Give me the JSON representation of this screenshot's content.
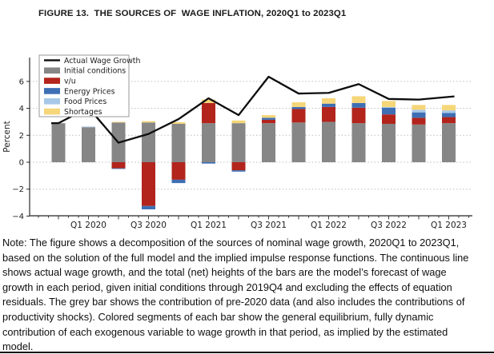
{
  "figure": {
    "title": "FIGURE 13.  THE SOURCES OF  WAGE INFLATION, 2020Q1 to 2023Q1"
  },
  "note_lines": [
    "Note: The figure shows a decomposition of the sources of nominal wage growth, 2020Q1 to 2023Q1,",
    "based on the solution of the full model and the implied impulse response functions. The continuous line",
    "shows actual wage growth, and the total (net) heights of the bars are the model’s forecast of wage",
    "growth in each period, given initial conditions through 2019Q4 and excluding the effects of equation",
    "residuals. The grey bar shows the contribution of pre-2020 data (and also includes the contributions of",
    "productivity shocks). Colored segments of each bar show the general equilibrium, fully dynamic",
    "contribution of each exogenous variable to wage growth in that period, as implied by the estimated",
    "model."
  ],
  "chart_data": {
    "type": "bar",
    "subtype": "stacked-bars-with-line",
    "title": "",
    "xlabel": "",
    "ylabel": "Percent",
    "ylim": [
      -4,
      7.75
    ],
    "yticks": [
      -4,
      -2,
      0,
      2,
      4,
      6
    ],
    "grid": "horizontal-dotted",
    "legend_position": "upper-left",
    "categories": [
      "2019Q4",
      "2020Q1",
      "2020Q2",
      "2020Q3",
      "2020Q4",
      "2021Q1",
      "2021Q2",
      "2021Q3",
      "2021Q4",
      "2022Q1",
      "2022Q2",
      "2022Q3",
      "2022Q4",
      "2023Q1"
    ],
    "xtick_label_indices": [
      1,
      3,
      5,
      7,
      9,
      11,
      13
    ],
    "xtick_labels": [
      "Q1 2020",
      "Q3 2020",
      "Q1 2021",
      "Q3 2021",
      "Q1 2022",
      "Q3 2022",
      "Q1 2023"
    ],
    "series": [
      {
        "name": "Initial conditions",
        "color": "#868686",
        "values": [
          2.9,
          2.6,
          2.95,
          2.95,
          2.85,
          2.9,
          2.9,
          2.9,
          2.95,
          3.0,
          2.9,
          2.85,
          2.8,
          2.9
        ]
      },
      {
        "name": "v/u",
        "color": "#b2241c",
        "values": [
          0,
          0,
          -0.45,
          -3.25,
          -1.3,
          1.5,
          -0.6,
          0.25,
          1.0,
          1.1,
          1.15,
          0.7,
          0.5,
          0.45
        ]
      },
      {
        "name": "Energy Prices",
        "color": "#3e6fb4",
        "values": [
          0,
          0,
          -0.05,
          -0.25,
          -0.25,
          -0.1,
          -0.1,
          0.15,
          0.15,
          0.25,
          0.35,
          0.5,
          0.4,
          0.3
        ]
      },
      {
        "name": "Food Prices",
        "color": "#a8c8e8",
        "values": [
          0,
          0.05,
          0,
          0,
          0,
          0,
          0,
          0,
          0,
          0,
          0,
          0.05,
          0.2,
          0.2
        ]
      },
      {
        "name": "Shortages",
        "color": "#f5d678",
        "values": [
          0,
          0,
          0.05,
          0.1,
          0.12,
          0.25,
          0.2,
          0.2,
          0.35,
          0.4,
          0.5,
          0.45,
          0.35,
          0.4
        ]
      }
    ],
    "line": {
      "name": "Actual Wage Growth",
      "color": "#0d0d0d",
      "values": [
        2.9,
        4.05,
        1.45,
        2.1,
        3.2,
        4.75,
        3.5,
        6.35,
        5.1,
        5.15,
        5.8,
        4.7,
        4.65,
        4.85
      ]
    },
    "legend_order": [
      "Actual Wage Growth",
      "Initial conditions",
      "v/u",
      "Energy Prices",
      "Food Prices",
      "Shortages"
    ]
  }
}
